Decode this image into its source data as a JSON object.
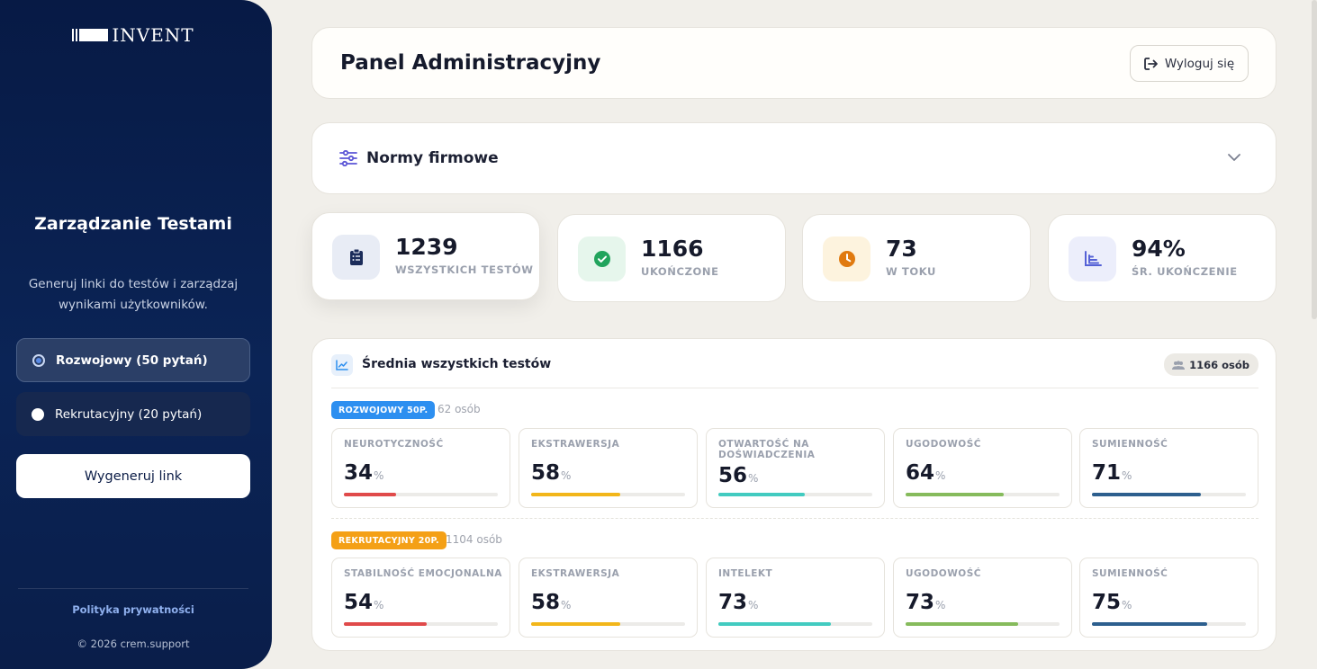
{
  "brand": {
    "logo_text": "INVENT"
  },
  "sidebar": {
    "title": "Zarządzanie Testami",
    "description": "Generuj linki do testów i zarządzaj wynikami użytkowników.",
    "options": [
      {
        "label": "Rozwojowy (50 pytań)",
        "selected": true
      },
      {
        "label": "Rekrutacyjny (20 pytań)",
        "selected": false
      }
    ],
    "generate_label": "Wygeneruj link",
    "privacy_label": "Polityka prywatności",
    "copyright": "© 2026 crem.support"
  },
  "header": {
    "title": "Panel Administracyjny",
    "logout_label": "Wyloguj się"
  },
  "norms": {
    "title": "Normy firmowe"
  },
  "stats": [
    {
      "value": "1239",
      "label": "WSZYSTKICH TESTÓW",
      "icon": "clipboard-icon",
      "color": "#1b2c5a",
      "bg": "#e8ecf5"
    },
    {
      "value": "1166",
      "label": "UKOŃCZONE",
      "icon": "check-circle-icon",
      "color": "#22a45d",
      "bg": "#e6f6ec"
    },
    {
      "value": "73",
      "label": "W TOKU",
      "icon": "clock-icon",
      "color": "#e07a10",
      "bg": "#fdf3de"
    },
    {
      "value": "94%",
      "label": "ŚR. UKOŃCZENIE",
      "icon": "bar-chart-icon",
      "color": "#5561d6",
      "bg": "#eceefb"
    }
  ],
  "averages": {
    "title": "Średnia wszystkich testów",
    "total_people": "1166 osób",
    "groups": [
      {
        "tag": "ROZWOJOWY 50P.",
        "people": "62 osób",
        "metrics": [
          {
            "label": "NEUROTYCZNOŚĆ",
            "value": "34",
            "unit": "%",
            "fill": 0.34,
            "color": "#e04a4a"
          },
          {
            "label": "EKSTRAWERSJA",
            "value": "58",
            "unit": "%",
            "fill": 0.58,
            "color": "#f2b61a"
          },
          {
            "label": "OTWARTOŚĆ NA DOŚWIADCZENIA",
            "value": "56",
            "unit": "%",
            "fill": 0.56,
            "color": "#42cbc0"
          },
          {
            "label": "UGODOWOŚĆ",
            "value": "64",
            "unit": "%",
            "fill": 0.64,
            "color": "#86bb5c"
          },
          {
            "label": "SUMIENNOŚĆ",
            "value": "71",
            "unit": "%",
            "fill": 0.71,
            "color": "#2d5f8e"
          }
        ]
      },
      {
        "tag": "REKRUTACYJNY 20P.",
        "people": "1104 osób",
        "metrics": [
          {
            "label": "STABILNOŚĆ EMOCJONALNA",
            "value": "54",
            "unit": "%",
            "fill": 0.54,
            "color": "#e04a4a"
          },
          {
            "label": "EKSTRAWERSJA",
            "value": "58",
            "unit": "%",
            "fill": 0.58,
            "color": "#f2b61a"
          },
          {
            "label": "INTELEKT",
            "value": "73",
            "unit": "%",
            "fill": 0.73,
            "color": "#42cbc0"
          },
          {
            "label": "UGODOWOŚĆ",
            "value": "73",
            "unit": "%",
            "fill": 0.73,
            "color": "#86bb5c"
          },
          {
            "label": "SUMIENNOŚĆ",
            "value": "75",
            "unit": "%",
            "fill": 0.75,
            "color": "#2d5f8e"
          }
        ]
      }
    ]
  }
}
